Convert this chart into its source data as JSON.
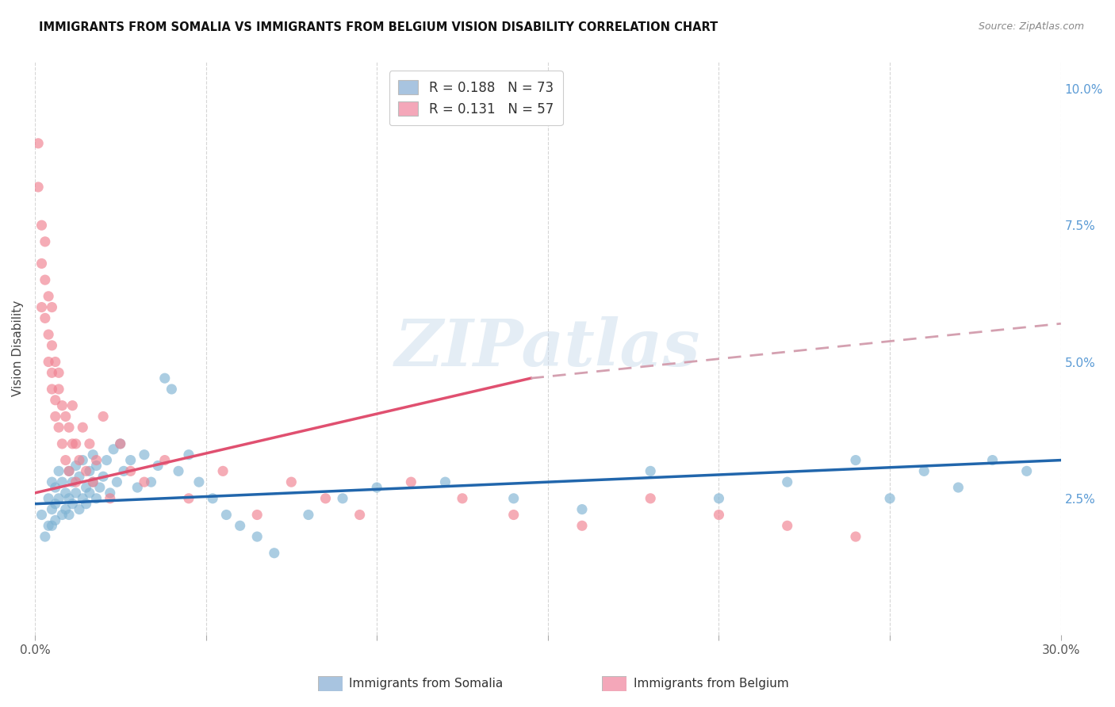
{
  "title": "IMMIGRANTS FROM SOMALIA VS IMMIGRANTS FROM BELGIUM VISION DISABILITY CORRELATION CHART",
  "source": "Source: ZipAtlas.com",
  "ylabel": "Vision Disability",
  "xlim": [
    0.0,
    0.3
  ],
  "ylim": [
    0.0,
    0.105
  ],
  "yticks_right": [
    0.025,
    0.05,
    0.075,
    0.1
  ],
  "ytick_right_labels": [
    "2.5%",
    "5.0%",
    "7.5%",
    "10.0%"
  ],
  "legend1_label": "R = 0.188   N = 73",
  "legend2_label": "R = 0.131   N = 57",
  "legend1_color": "#a8c4e0",
  "legend2_color": "#f4a7b9",
  "scatter1_color": "#7fb3d3",
  "scatter2_color": "#f08090",
  "line1_color": "#2166ac",
  "line2_color": "#e05070",
  "line2_dashed_color": "#d4a0b0",
  "watermark": "ZIPatlas",
  "somalia_x": [
    0.002,
    0.003,
    0.004,
    0.004,
    0.005,
    0.005,
    0.005,
    0.006,
    0.006,
    0.006,
    0.007,
    0.007,
    0.008,
    0.008,
    0.009,
    0.009,
    0.01,
    0.01,
    0.01,
    0.011,
    0.011,
    0.012,
    0.012,
    0.013,
    0.013,
    0.014,
    0.014,
    0.015,
    0.015,
    0.016,
    0.016,
    0.017,
    0.017,
    0.018,
    0.018,
    0.019,
    0.02,
    0.021,
    0.022,
    0.023,
    0.024,
    0.025,
    0.026,
    0.028,
    0.03,
    0.032,
    0.034,
    0.036,
    0.038,
    0.04,
    0.042,
    0.045,
    0.048,
    0.052,
    0.056,
    0.06,
    0.065,
    0.07,
    0.08,
    0.09,
    0.1,
    0.12,
    0.14,
    0.16,
    0.18,
    0.2,
    0.22,
    0.24,
    0.25,
    0.26,
    0.27,
    0.28,
    0.29
  ],
  "somalia_y": [
    0.022,
    0.018,
    0.025,
    0.02,
    0.028,
    0.023,
    0.02,
    0.027,
    0.024,
    0.021,
    0.03,
    0.025,
    0.022,
    0.028,
    0.026,
    0.023,
    0.03,
    0.025,
    0.022,
    0.028,
    0.024,
    0.031,
    0.026,
    0.023,
    0.029,
    0.025,
    0.032,
    0.027,
    0.024,
    0.03,
    0.026,
    0.028,
    0.033,
    0.025,
    0.031,
    0.027,
    0.029,
    0.032,
    0.026,
    0.034,
    0.028,
    0.035,
    0.03,
    0.032,
    0.027,
    0.033,
    0.028,
    0.031,
    0.047,
    0.045,
    0.03,
    0.033,
    0.028,
    0.025,
    0.022,
    0.02,
    0.018,
    0.015,
    0.022,
    0.025,
    0.027,
    0.028,
    0.025,
    0.023,
    0.03,
    0.025,
    0.028,
    0.032,
    0.025,
    0.03,
    0.027,
    0.032,
    0.03
  ],
  "belgium_x": [
    0.001,
    0.001,
    0.002,
    0.002,
    0.002,
    0.003,
    0.003,
    0.003,
    0.004,
    0.004,
    0.004,
    0.005,
    0.005,
    0.005,
    0.005,
    0.006,
    0.006,
    0.006,
    0.007,
    0.007,
    0.007,
    0.008,
    0.008,
    0.009,
    0.009,
    0.01,
    0.01,
    0.011,
    0.011,
    0.012,
    0.012,
    0.013,
    0.014,
    0.015,
    0.016,
    0.017,
    0.018,
    0.02,
    0.022,
    0.025,
    0.028,
    0.032,
    0.038,
    0.045,
    0.055,
    0.065,
    0.075,
    0.085,
    0.095,
    0.11,
    0.125,
    0.14,
    0.16,
    0.18,
    0.2,
    0.22,
    0.24
  ],
  "belgium_y": [
    0.09,
    0.082,
    0.075,
    0.068,
    0.06,
    0.072,
    0.058,
    0.065,
    0.055,
    0.05,
    0.062,
    0.048,
    0.053,
    0.045,
    0.06,
    0.043,
    0.05,
    0.04,
    0.048,
    0.038,
    0.045,
    0.042,
    0.035,
    0.04,
    0.032,
    0.038,
    0.03,
    0.035,
    0.042,
    0.028,
    0.035,
    0.032,
    0.038,
    0.03,
    0.035,
    0.028,
    0.032,
    0.04,
    0.025,
    0.035,
    0.03,
    0.028,
    0.032,
    0.025,
    0.03,
    0.022,
    0.028,
    0.025,
    0.022,
    0.028,
    0.025,
    0.022,
    0.02,
    0.025,
    0.022,
    0.02,
    0.018
  ],
  "line1_x_start": 0.0,
  "line1_x_end": 0.3,
  "line1_y_start": 0.024,
  "line1_y_end": 0.032,
  "line2_solid_x_start": 0.0,
  "line2_solid_x_end": 0.145,
  "line2_solid_y_start": 0.026,
  "line2_solid_y_end": 0.047,
  "line2_dash_x_start": 0.145,
  "line2_dash_x_end": 0.3,
  "line2_dash_y_start": 0.047,
  "line2_dash_y_end": 0.057
}
